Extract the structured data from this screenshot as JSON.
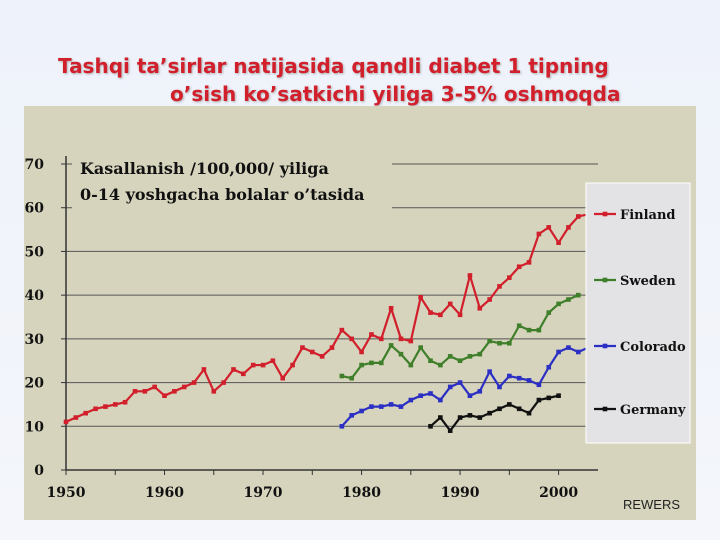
{
  "title_line1": "Tashqi ta’sirlar natijasida qandli diabet 1 tipning",
  "title_line2": "o’sish ko’satkichi yiliga 3-5% oshmoqda",
  "source": "REWERS",
  "colors": {
    "background": "#eef2fa",
    "panel": "#d6d4bd",
    "title": "#d11f2b",
    "Finland": "#d11f2b",
    "Sweden": "#3f7f2a",
    "Colorado": "#2b2fc4",
    "Germany": "#111111"
  },
  "chart_data": {
    "type": "line",
    "annotation": [
      "Kasallanish  /100,000/  yiliga",
      "0-14 yoshgacha bolalar  o’tasida"
    ],
    "xlim": [
      1950,
      2004
    ],
    "ylim": [
      0,
      70
    ],
    "xticks": [
      1950,
      1960,
      1970,
      1980,
      1990,
      2000
    ],
    "yticks": [
      0,
      10,
      20,
      30,
      40,
      50,
      60,
      70
    ],
    "grid": true,
    "legend_position": "right",
    "series": [
      {
        "name": "Finland",
        "x": [
          1950,
          1951,
          1952,
          1953,
          1954,
          1955,
          1956,
          1957,
          1958,
          1959,
          1960,
          1961,
          1962,
          1963,
          1964,
          1965,
          1966,
          1967,
          1968,
          1969,
          1970,
          1971,
          1972,
          1973,
          1974,
          1975,
          1976,
          1977,
          1978,
          1979,
          1980,
          1981,
          1982,
          1983,
          1984,
          1985,
          1986,
          1987,
          1988,
          1989,
          1990,
          1991,
          1992,
          1993,
          1994,
          1995,
          1996,
          1997,
          1998,
          1999,
          2000,
          2001,
          2002,
          2003
        ],
        "y": [
          11,
          12,
          13,
          14,
          14.5,
          15,
          15.5,
          18,
          18,
          19,
          17,
          18,
          19,
          20,
          23,
          18,
          20,
          23,
          22,
          24,
          24,
          25,
          21,
          24,
          28,
          27,
          26,
          28,
          32,
          30,
          27,
          31,
          30,
          37,
          30,
          29.5,
          39.5,
          36,
          35.5,
          38,
          35.5,
          44.5,
          37,
          39,
          42,
          44,
          46.5,
          47.5,
          54,
          55.5,
          52,
          55.5,
          58,
          58.5
        ]
      },
      {
        "name": "Sweden",
        "x": [
          1978,
          1979,
          1980,
          1981,
          1982,
          1983,
          1984,
          1985,
          1986,
          1987,
          1988,
          1989,
          1990,
          1991,
          1992,
          1993,
          1994,
          1995,
          1996,
          1997,
          1998,
          1999,
          2000,
          2001,
          2002
        ],
        "y": [
          21.5,
          21,
          24,
          24.5,
          24.5,
          28.5,
          26.5,
          24,
          28,
          25,
          24,
          26,
          25,
          26,
          26.5,
          29.5,
          29,
          29,
          33,
          32,
          32,
          36,
          38,
          39,
          40
        ]
      },
      {
        "name": "Colorado",
        "x": [
          1978,
          1979,
          1980,
          1981,
          1982,
          1983,
          1984,
          1985,
          1986,
          1987,
          1988,
          1989,
          1990,
          1991,
          1992,
          1993,
          1994,
          1995,
          1996,
          1997,
          1998,
          1999,
          2000,
          2001,
          2002,
          2003
        ],
        "y": [
          10,
          12.5,
          13.5,
          14.5,
          14.5,
          15,
          14.5,
          16,
          17,
          17.5,
          16,
          19,
          20,
          17,
          18,
          22.5,
          19,
          21.5,
          21,
          20.5,
          19.5,
          23.5,
          27,
          28,
          27,
          28
        ]
      },
      {
        "name": "Germany",
        "x": [
          1987,
          1988,
          1989,
          1990,
          1991,
          1992,
          1993,
          1994,
          1995,
          1996,
          1997,
          1998,
          1999,
          2000
        ],
        "y": [
          10,
          12,
          9,
          12,
          12.5,
          12,
          13,
          14,
          15,
          14,
          13,
          16,
          16.5,
          17
        ]
      }
    ]
  }
}
